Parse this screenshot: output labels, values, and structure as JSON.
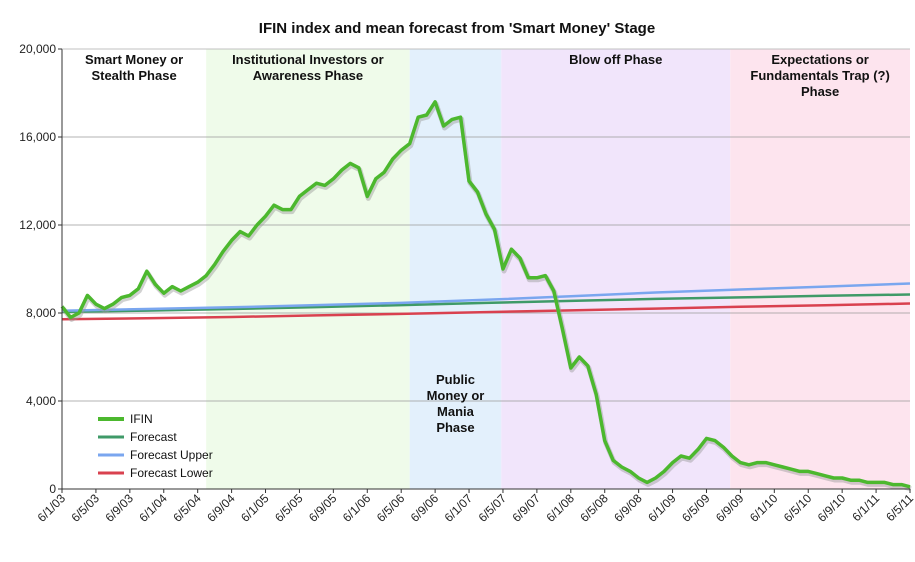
{
  "chart_data": {
    "type": "line",
    "title": "IFIN index and mean forecast from 'Smart Money' Stage",
    "xlabel": "",
    "ylabel": "",
    "ylim": [
      0,
      20000
    ],
    "yticks": [
      0,
      4000,
      8000,
      12000,
      16000,
      20000
    ],
    "ytick_labels": [
      "0",
      "4,000",
      "8,000",
      "12,000",
      "16,000",
      "20,000"
    ],
    "x_range": [
      0,
      100
    ],
    "xtick_labels": [
      "6/1/03",
      "6/5/03",
      "6/9/03",
      "6/1/04",
      "6/5/04",
      "6/9/04",
      "6/1/05",
      "6/5/05",
      "6/9/05",
      "6/1/06",
      "6/5/06",
      "6/9/06",
      "6/1/07",
      "6/5/07",
      "6/9/07",
      "6/1/08",
      "6/5/08",
      "6/9/08",
      "6/1/09",
      "6/5/09",
      "6/9/09",
      "6/1/10",
      "6/5/10",
      "6/9/10",
      "6/1/11",
      "6/5/11"
    ],
    "xtick_positions": [
      0,
      4,
      8,
      12,
      16,
      20,
      24,
      28,
      32,
      36,
      40,
      44,
      48,
      52,
      56,
      60,
      64,
      68,
      72,
      76,
      80,
      84,
      88,
      92,
      96,
      100
    ],
    "phases": [
      {
        "label": "Smart Money or Stealth Phase",
        "lines": [
          "Smart Money or",
          "Stealth Phase"
        ],
        "start": 0,
        "end": 17,
        "color": "#ffffff"
      },
      {
        "label": "Institutional Investors or Awareness Phase",
        "lines": [
          "Institutional Investors or",
          "Awareness Phase"
        ],
        "start": 17,
        "end": 41,
        "color": "#effbea"
      },
      {
        "label": "Public Money or Mania Phase",
        "lines": [
          "Public",
          "Money or",
          "Mania",
          "Phase"
        ],
        "start": 41,
        "end": 51.8,
        "color": "#e3f0fc"
      },
      {
        "label": "Blow off Phase",
        "lines": [
          "Blow off Phase"
        ],
        "start": 51.8,
        "end": 78.8,
        "color": "#f1e5fb"
      },
      {
        "label": "Expectations or Fundamentals Trap (?) Phase",
        "lines": [
          "Expectations or",
          "Fundamentals Trap (?)",
          "Phase"
        ],
        "start": 78.8,
        "end": 100,
        "color": "#fde4ee"
      }
    ],
    "legend_position": "bottom-left",
    "series": [
      {
        "name": "IFIN",
        "color": "#4cb82e",
        "x": [
          0,
          1,
          2,
          3,
          4,
          5,
          6,
          7,
          8,
          9,
          10,
          11,
          12,
          13,
          14,
          15,
          16,
          17,
          18,
          19,
          20,
          21,
          22,
          23,
          24,
          25,
          26,
          27,
          28,
          29,
          30,
          31,
          32,
          33,
          34,
          35,
          36,
          37,
          38,
          39,
          40,
          41,
          42,
          43,
          44,
          45,
          46,
          47,
          48,
          49,
          50,
          51,
          52,
          53,
          54,
          55,
          56,
          57,
          58,
          59,
          60,
          61,
          62,
          63,
          64,
          65,
          66,
          67,
          68,
          69,
          70,
          71,
          72,
          73,
          74,
          75,
          76,
          77,
          78,
          79,
          80,
          81,
          82,
          83,
          84,
          85,
          86,
          87,
          88,
          89,
          90,
          91,
          92,
          93,
          94,
          95,
          96,
          97,
          98,
          99,
          100
        ],
        "values": [
          8300,
          7800,
          8000,
          8800,
          8400,
          8200,
          8400,
          8700,
          8800,
          9100,
          9900,
          9300,
          8900,
          9200,
          9000,
          9200,
          9400,
          9700,
          10200,
          10800,
          11300,
          11700,
          11500,
          12000,
          12400,
          12900,
          12700,
          12700,
          13300,
          13600,
          13900,
          13800,
          14100,
          14500,
          14800,
          14600,
          13300,
          14100,
          14400,
          15000,
          15400,
          15700,
          16900,
          17000,
          17600,
          16500,
          16800,
          16900,
          14000,
          13500,
          12500,
          11800,
          10000,
          10900,
          10500,
          9600,
          9600,
          9700,
          9000,
          7300,
          5500,
          6000,
          5600,
          4300,
          2200,
          1300,
          1000,
          800,
          500,
          300,
          500,
          800,
          1200,
          1500,
          1400,
          1800,
          2300,
          2200,
          1900,
          1500,
          1200,
          1100,
          1200,
          1200,
          1100,
          1000,
          900,
          800,
          800,
          700,
          600,
          500,
          500,
          400,
          400,
          300,
          300,
          300,
          200,
          200,
          100
        ]
      },
      {
        "name": "Forecast",
        "color": "#3f9a68",
        "x": [
          0,
          10,
          20,
          30,
          40,
          50,
          60,
          70,
          80,
          90,
          100
        ],
        "values": [
          8050,
          8110,
          8180,
          8270,
          8360,
          8460,
          8550,
          8640,
          8710,
          8780,
          8840
        ]
      },
      {
        "name": "Forecast Upper",
        "color": "#7aa6ef",
        "x": [
          0,
          10,
          20,
          30,
          40,
          50,
          60,
          70,
          80,
          90,
          100
        ],
        "values": [
          8100,
          8180,
          8260,
          8360,
          8460,
          8600,
          8760,
          8930,
          9070,
          9200,
          9340
        ]
      },
      {
        "name": "Forecast Lower",
        "color": "#d9414f",
        "x": [
          0,
          10,
          20,
          30,
          40,
          50,
          60,
          70,
          80,
          90,
          100
        ],
        "values": [
          7720,
          7760,
          7820,
          7890,
          7960,
          8040,
          8120,
          8200,
          8280,
          8350,
          8430
        ]
      }
    ]
  }
}
